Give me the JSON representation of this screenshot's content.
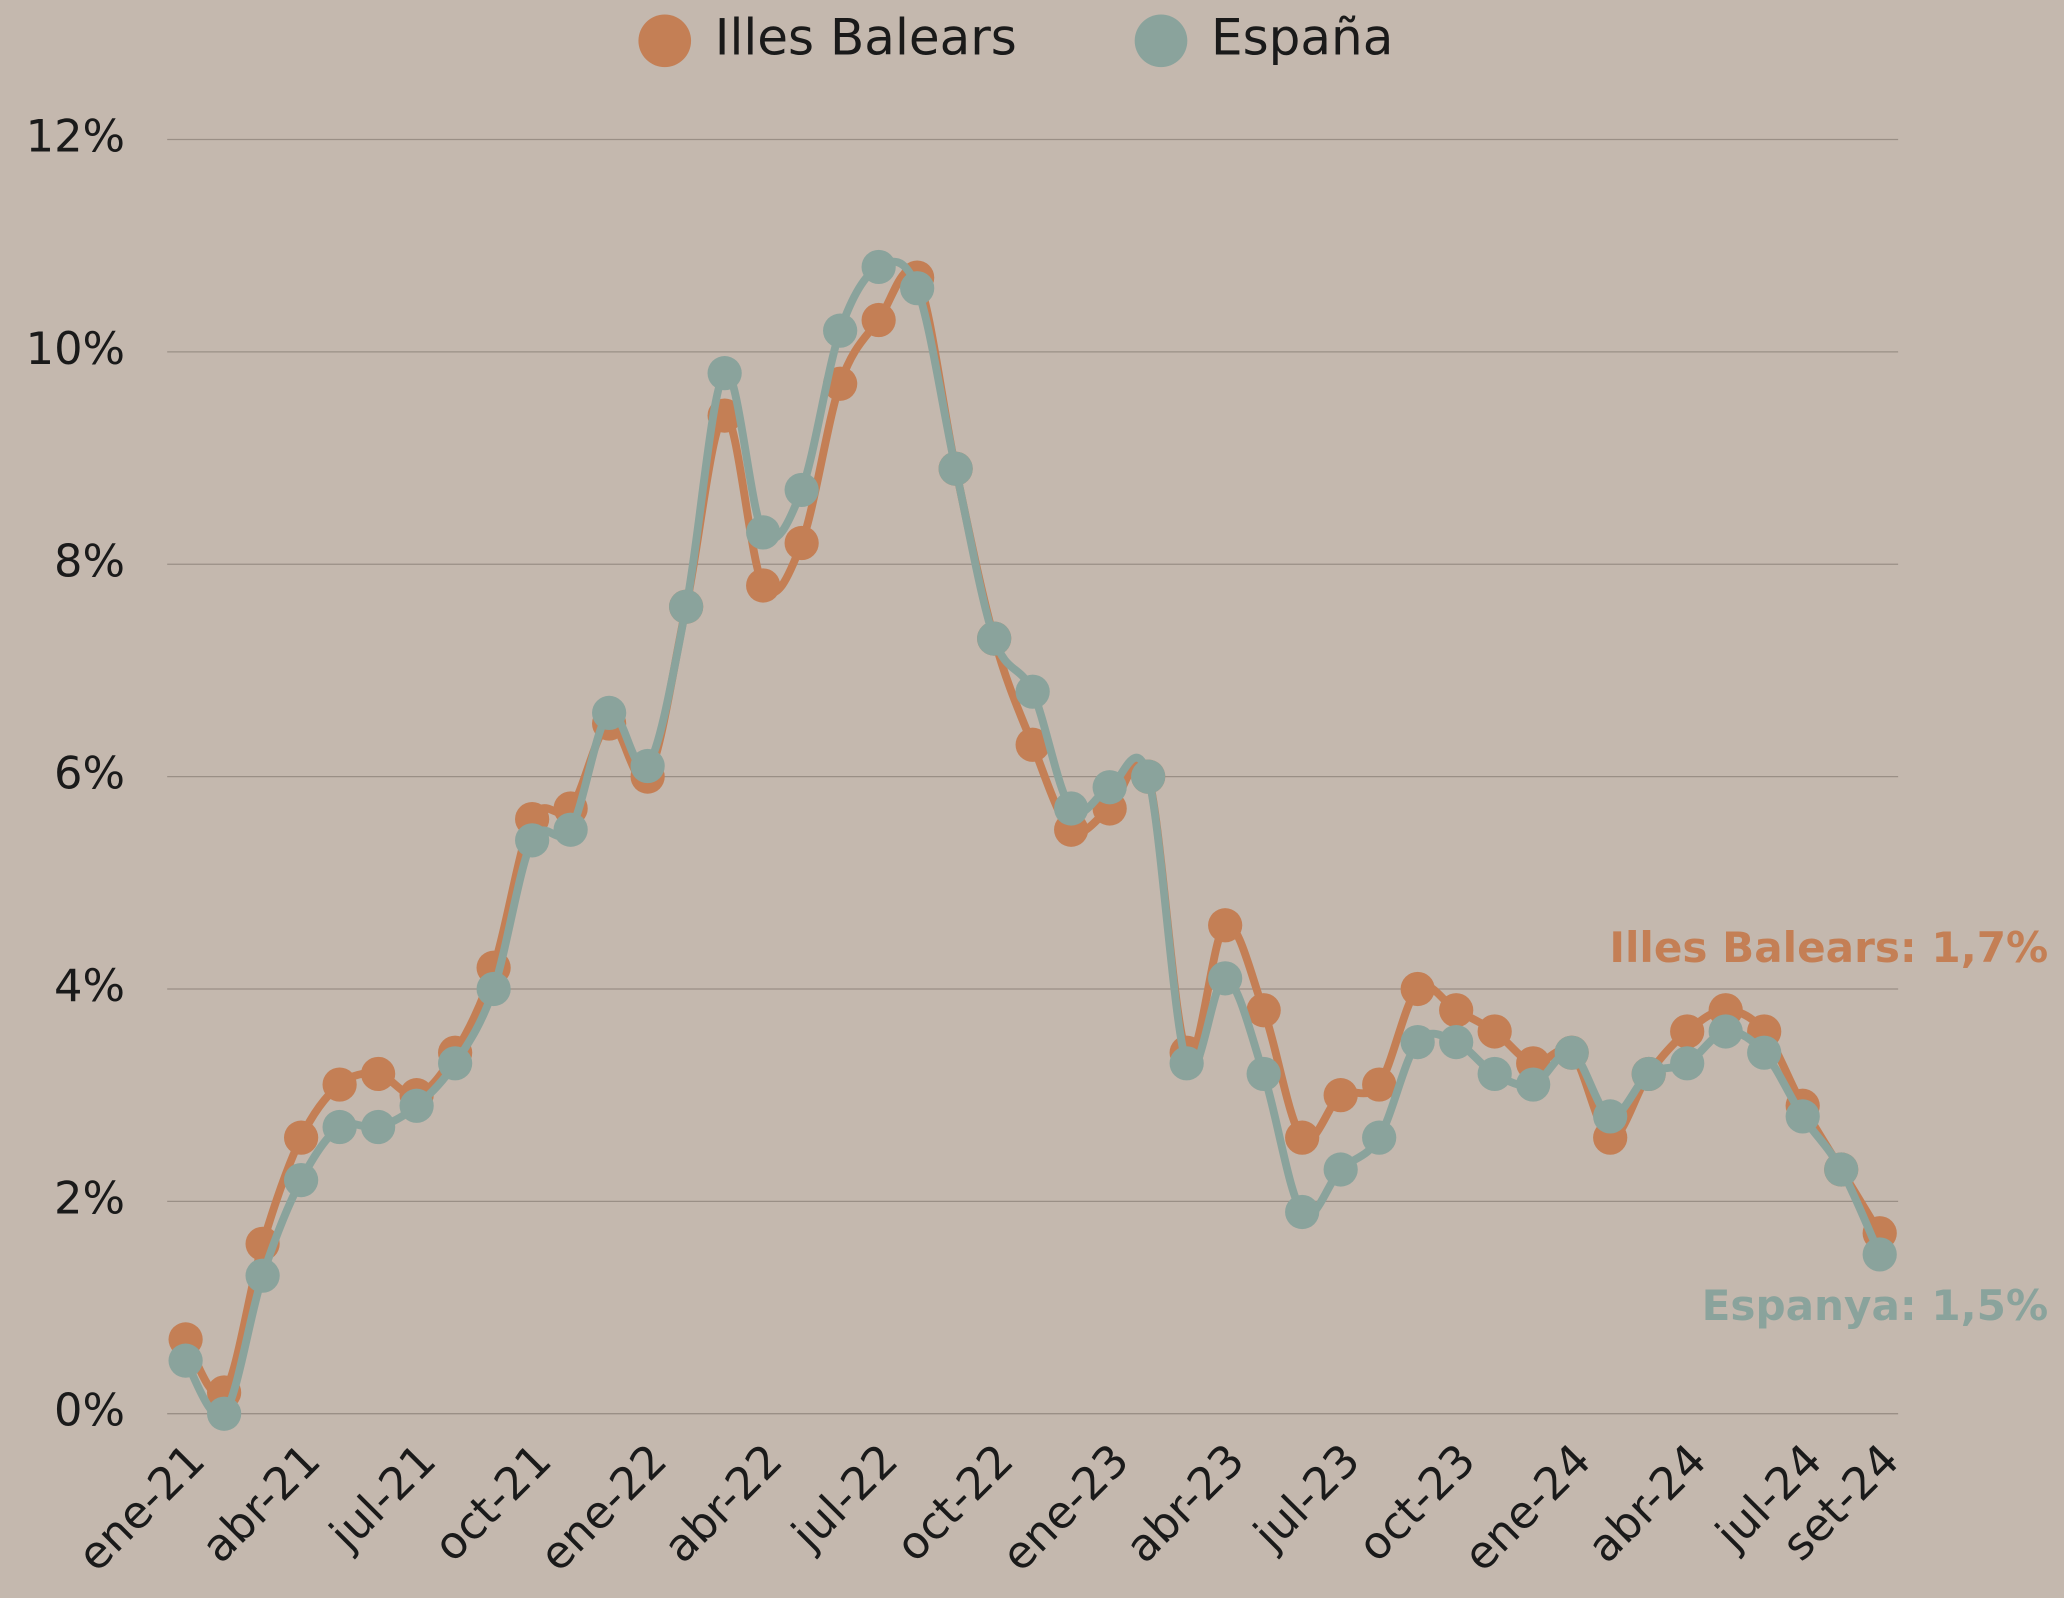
{
  "chart_data": {
    "type": "line",
    "categories": [
      "ene-21",
      null,
      null,
      "abr-21",
      null,
      null,
      "jul-21",
      null,
      null,
      "oct-21",
      null,
      null,
      "ene-22",
      null,
      null,
      "abr-22",
      null,
      null,
      "jul-22",
      null,
      null,
      "oct-22",
      null,
      null,
      "ene-23",
      null,
      null,
      "abr-23",
      null,
      null,
      "jul-23",
      null,
      null,
      "oct-23",
      null,
      null,
      "ene-24",
      null,
      null,
      "abr-24",
      null,
      null,
      "jul-24",
      null,
      "set-24"
    ],
    "series": [
      {
        "name": "Illes Balears",
        "color": "#c47f55",
        "values": [
          0.7,
          0.2,
          1.6,
          2.6,
          3.1,
          3.2,
          3.0,
          3.4,
          4.2,
          5.6,
          5.7,
          6.5,
          6.0,
          7.6,
          9.4,
          7.8,
          8.2,
          9.7,
          10.3,
          10.7,
          8.9,
          7.3,
          6.3,
          5.5,
          5.7,
          6.0,
          3.4,
          4.6,
          3.8,
          2.6,
          3.0,
          3.1,
          4.0,
          3.8,
          3.6,
          3.3,
          3.4,
          2.6,
          3.2,
          3.6,
          3.8,
          3.6,
          2.9,
          2.3,
          1.7
        ]
      },
      {
        "name": "España",
        "color": "#8aa39c",
        "values": [
          0.5,
          0.0,
          1.3,
          2.2,
          2.7,
          2.7,
          2.9,
          3.3,
          4.0,
          5.4,
          5.5,
          6.6,
          6.1,
          7.6,
          9.8,
          8.3,
          8.7,
          10.2,
          10.8,
          10.6,
          8.9,
          7.3,
          6.8,
          5.7,
          5.9,
          6.0,
          3.3,
          4.1,
          3.2,
          1.9,
          2.3,
          2.6,
          3.5,
          3.5,
          3.2,
          3.1,
          3.4,
          2.8,
          3.2,
          3.3,
          3.6,
          3.4,
          2.8,
          2.3,
          1.5
        ]
      }
    ],
    "annotations": [
      "Illes Balears: 1,7%",
      "Espanya: 1,5%"
    ],
    "ylim": [
      0,
      12
    ],
    "yticks": [
      {
        "value": 0,
        "label": "0%"
      },
      {
        "value": 2,
        "label": "2%"
      },
      {
        "value": 4,
        "label": "4%"
      },
      {
        "value": 6,
        "label": "6%"
      },
      {
        "value": 8,
        "label": "8%"
      },
      {
        "value": 10,
        "label": "10%"
      },
      {
        "value": 12,
        "label": "12%"
      }
    ],
    "grid": true,
    "legend": "top"
  }
}
